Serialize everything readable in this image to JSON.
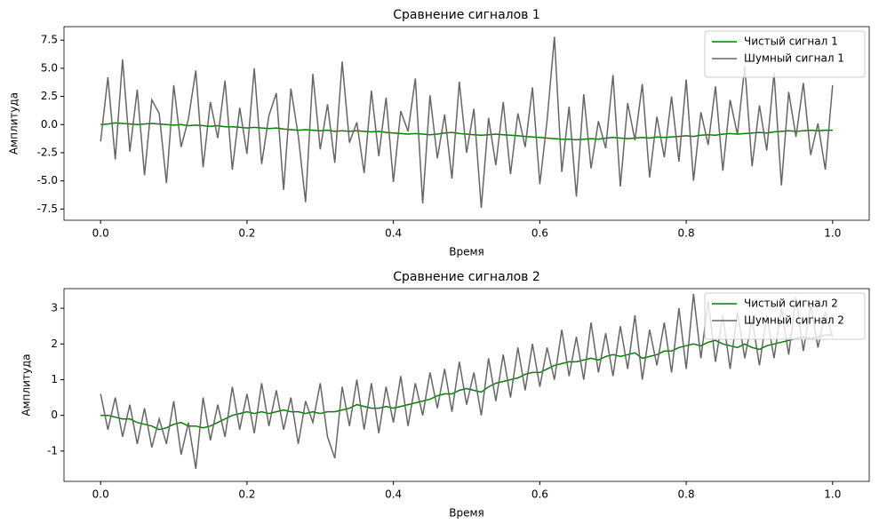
{
  "chart_data": [
    {
      "type": "line",
      "title": "Сравнение сигналов 1",
      "xlabel": "Время",
      "ylabel": "Амплитуда",
      "x": [
        0,
        0.01,
        0.02,
        0.03,
        0.04,
        0.05,
        0.06,
        0.07,
        0.08,
        0.09,
        0.1,
        0.11,
        0.12,
        0.13,
        0.14,
        0.15,
        0.16,
        0.17,
        0.18,
        0.19,
        0.2,
        0.21,
        0.22,
        0.23,
        0.24,
        0.25,
        0.26,
        0.27,
        0.28,
        0.29,
        0.3,
        0.31,
        0.32,
        0.33,
        0.34,
        0.35,
        0.36,
        0.37,
        0.38,
        0.39,
        0.4,
        0.41,
        0.42,
        0.43,
        0.44,
        0.45,
        0.46,
        0.47,
        0.48,
        0.49,
        0.5,
        0.51,
        0.52,
        0.53,
        0.54,
        0.55,
        0.56,
        0.57,
        0.58,
        0.59,
        0.6,
        0.61,
        0.62,
        0.63,
        0.64,
        0.65,
        0.66,
        0.67,
        0.68,
        0.69,
        0.7,
        0.71,
        0.72,
        0.73,
        0.74,
        0.75,
        0.76,
        0.77,
        0.78,
        0.79,
        0.8,
        0.81,
        0.82,
        0.83,
        0.84,
        0.85,
        0.86,
        0.87,
        0.88,
        0.89,
        0.9,
        0.91,
        0.92,
        0.93,
        0.94,
        0.95,
        0.96,
        0.97,
        0.98,
        0.99,
        1
      ],
      "series": [
        {
          "name": "Чистый сигнал 1",
          "color": "#008000",
          "values": [
            0.0,
            0.05,
            0.15,
            0.1,
            0.05,
            0.0,
            0.05,
            0.1,
            0.05,
            0.0,
            -0.05,
            0.0,
            -0.1,
            -0.05,
            -0.1,
            -0.15,
            -0.1,
            -0.2,
            -0.2,
            -0.25,
            -0.3,
            -0.25,
            -0.3,
            -0.35,
            -0.3,
            -0.4,
            -0.45,
            -0.5,
            -0.45,
            -0.5,
            -0.55,
            -0.5,
            -0.6,
            -0.55,
            -0.6,
            -0.55,
            -0.6,
            -0.65,
            -0.6,
            -0.7,
            -0.75,
            -0.8,
            -0.85,
            -0.8,
            -0.85,
            -0.9,
            -0.85,
            -0.75,
            -0.7,
            -0.8,
            -0.85,
            -0.9,
            -0.95,
            -0.9,
            -0.85,
            -0.9,
            -0.95,
            -1.0,
            -1.05,
            -1.1,
            -1.15,
            -1.2,
            -1.25,
            -1.3,
            -1.3,
            -1.35,
            -1.3,
            -1.25,
            -1.3,
            -1.2,
            -1.15,
            -1.2,
            -1.25,
            -1.2,
            -1.15,
            -1.2,
            -1.1,
            -1.15,
            -1.1,
            -1.05,
            -1.0,
            -1.05,
            -0.95,
            -0.9,
            -0.95,
            -0.85,
            -0.8,
            -0.85,
            -0.8,
            -0.75,
            -0.7,
            -0.75,
            -0.65,
            -0.6,
            -0.55,
            -0.6,
            -0.55,
            -0.5,
            -0.55,
            -0.5,
            -0.5
          ]
        },
        {
          "name": "Шумный сигнал 1",
          "color": "#666666",
          "values": [
            -1.5,
            4.2,
            -3.1,
            5.8,
            -2.4,
            3.1,
            -4.5,
            2.2,
            1.0,
            -5.2,
            3.5,
            -2.0,
            0.5,
            4.8,
            -3.8,
            2.0,
            -1.2,
            3.9,
            -4.0,
            1.5,
            -2.6,
            5.0,
            -3.5,
            0.8,
            2.8,
            -5.8,
            3.2,
            -1.0,
            -6.9,
            4.5,
            -2.2,
            1.8,
            -3.4,
            5.6,
            -1.6,
            0.2,
            -4.3,
            3.0,
            -2.8,
            2.4,
            -5.1,
            1.2,
            -0.6,
            4.1,
            -7.0,
            2.6,
            -3.0,
            0.9,
            -4.8,
            3.8,
            -2.5,
            1.4,
            -7.4,
            0.6,
            -3.6,
            2.0,
            -4.4,
            1.0,
            -2.0,
            3.3,
            -5.3,
            0.4,
            7.8,
            -4.2,
            1.6,
            -6.4,
            2.7,
            -3.9,
            0.3,
            -2.1,
            4.4,
            -5.5,
            1.9,
            -1.4,
            3.6,
            -4.7,
            0.7,
            -2.9,
            2.5,
            -3.3,
            4.0,
            -5.0,
            1.1,
            -1.8,
            3.4,
            -4.1,
            2.2,
            -0.9,
            5.2,
            -3.7,
            1.7,
            -2.3,
            4.6,
            -5.4,
            2.9,
            -1.1,
            3.7,
            -2.7,
            0.1,
            -4.0,
            3.5
          ]
        }
      ],
      "xlim": [
        -0.05,
        1.05
      ],
      "xticks": [
        {
          "value": 0,
          "label": "0.0"
        },
        0.2,
        0.4,
        0.6,
        0.8,
        {
          "value": 1,
          "label": "1.0"
        }
      ],
      "ylim": [
        -8.5,
        8.7
      ],
      "yticks": [
        -7.5,
        {
          "value": -5,
          "label": "-5.0"
        },
        -2.5,
        {
          "value": 0,
          "label": "0.0"
        },
        2.5,
        {
          "value": 5,
          "label": "5.0"
        },
        7.5
      ],
      "legend": "upper right"
    },
    {
      "type": "line",
      "title": "Сравнение сигналов 2",
      "xlabel": "Время",
      "ylabel": "Амплитуда",
      "x": [
        0,
        0.01,
        0.02,
        0.03,
        0.04,
        0.05,
        0.06,
        0.07,
        0.08,
        0.09,
        0.1,
        0.11,
        0.12,
        0.13,
        0.14,
        0.15,
        0.16,
        0.17,
        0.18,
        0.19,
        0.2,
        0.21,
        0.22,
        0.23,
        0.24,
        0.25,
        0.26,
        0.27,
        0.28,
        0.29,
        0.3,
        0.31,
        0.32,
        0.33,
        0.34,
        0.35,
        0.36,
        0.37,
        0.38,
        0.39,
        0.4,
        0.41,
        0.42,
        0.43,
        0.44,
        0.45,
        0.46,
        0.47,
        0.48,
        0.49,
        0.5,
        0.51,
        0.52,
        0.53,
        0.54,
        0.55,
        0.56,
        0.57,
        0.58,
        0.59,
        0.6,
        0.61,
        0.62,
        0.63,
        0.64,
        0.65,
        0.66,
        0.67,
        0.68,
        0.69,
        0.7,
        0.71,
        0.72,
        0.73,
        0.74,
        0.75,
        0.76,
        0.77,
        0.78,
        0.79,
        0.8,
        0.81,
        0.82,
        0.83,
        0.84,
        0.85,
        0.86,
        0.87,
        0.88,
        0.89,
        0.9,
        0.91,
        0.92,
        0.93,
        0.94,
        0.95,
        0.96,
        0.97,
        0.98,
        0.99,
        1
      ],
      "series": [
        {
          "name": "Чистый сигнал 2",
          "color": "#008000",
          "values": [
            0.0,
            0.0,
            -0.05,
            -0.1,
            -0.1,
            -0.2,
            -0.25,
            -0.3,
            -0.4,
            -0.35,
            -0.25,
            -0.2,
            -0.3,
            -0.3,
            -0.35,
            -0.3,
            -0.2,
            -0.1,
            0.0,
            0.05,
            0.1,
            0.05,
            0.1,
            0.05,
            0.1,
            0.15,
            0.1,
            0.1,
            0.05,
            0.1,
            0.05,
            0.1,
            0.1,
            0.15,
            0.2,
            0.3,
            0.25,
            0.2,
            0.2,
            0.25,
            0.2,
            0.25,
            0.3,
            0.35,
            0.4,
            0.45,
            0.55,
            0.6,
            0.6,
            0.7,
            0.75,
            0.7,
            0.65,
            0.8,
            0.9,
            0.95,
            1.0,
            1.05,
            1.15,
            1.2,
            1.2,
            1.3,
            1.4,
            1.45,
            1.5,
            1.5,
            1.55,
            1.6,
            1.55,
            1.65,
            1.7,
            1.65,
            1.7,
            1.75,
            1.6,
            1.65,
            1.7,
            1.8,
            1.8,
            1.9,
            1.95,
            2.0,
            1.95,
            2.05,
            2.1,
            2.0,
            1.95,
            1.9,
            2.0,
            1.9,
            1.85,
            1.95,
            2.0,
            2.05,
            2.1,
            2.15,
            2.2,
            2.15,
            2.2,
            2.25,
            2.25
          ]
        },
        {
          "name": "Шумный сигнал 2",
          "color": "#666666",
          "values": [
            0.6,
            -0.4,
            0.5,
            -0.6,
            0.3,
            -0.8,
            0.2,
            -0.9,
            -0.1,
            -0.8,
            0.4,
            -1.1,
            -0.2,
            -1.5,
            0.5,
            -0.7,
            0.3,
            -0.6,
            0.8,
            -0.4,
            0.6,
            -0.5,
            0.9,
            -0.3,
            0.7,
            -0.4,
            0.5,
            -0.8,
            0.4,
            -0.2,
            0.9,
            -0.6,
            -1.2,
            0.8,
            -0.3,
            1.0,
            -0.4,
            0.9,
            -0.5,
            0.8,
            -0.2,
            1.1,
            -0.3,
            0.9,
            0.0,
            1.2,
            0.2,
            1.3,
            0.1,
            1.5,
            0.3,
            1.2,
            0.0,
            1.6,
            0.4,
            1.7,
            0.5,
            1.9,
            0.7,
            2.0,
            0.8,
            1.9,
            1.0,
            2.4,
            1.1,
            2.2,
            1.0,
            2.6,
            1.2,
            2.3,
            1.1,
            2.5,
            1.3,
            2.8,
            1.0,
            2.4,
            1.4,
            2.6,
            1.2,
            3.0,
            1.3,
            3.4,
            1.6,
            3.2,
            1.5,
            2.8,
            1.3,
            2.9,
            1.6,
            2.7,
            1.4,
            2.8,
            1.6,
            3.0,
            1.7,
            3.3,
            1.8,
            3.1,
            1.9,
            2.9,
            2.2
          ]
        }
      ],
      "xlim": [
        -0.05,
        1.05
      ],
      "xticks": [
        {
          "value": 0,
          "label": "0.0"
        },
        0.2,
        0.4,
        0.6,
        0.8,
        {
          "value": 1,
          "label": "1.0"
        }
      ],
      "ylim": [
        -1.85,
        3.55
      ],
      "yticks": [
        -1,
        0,
        1,
        2,
        3
      ],
      "legend": "upper right"
    }
  ]
}
